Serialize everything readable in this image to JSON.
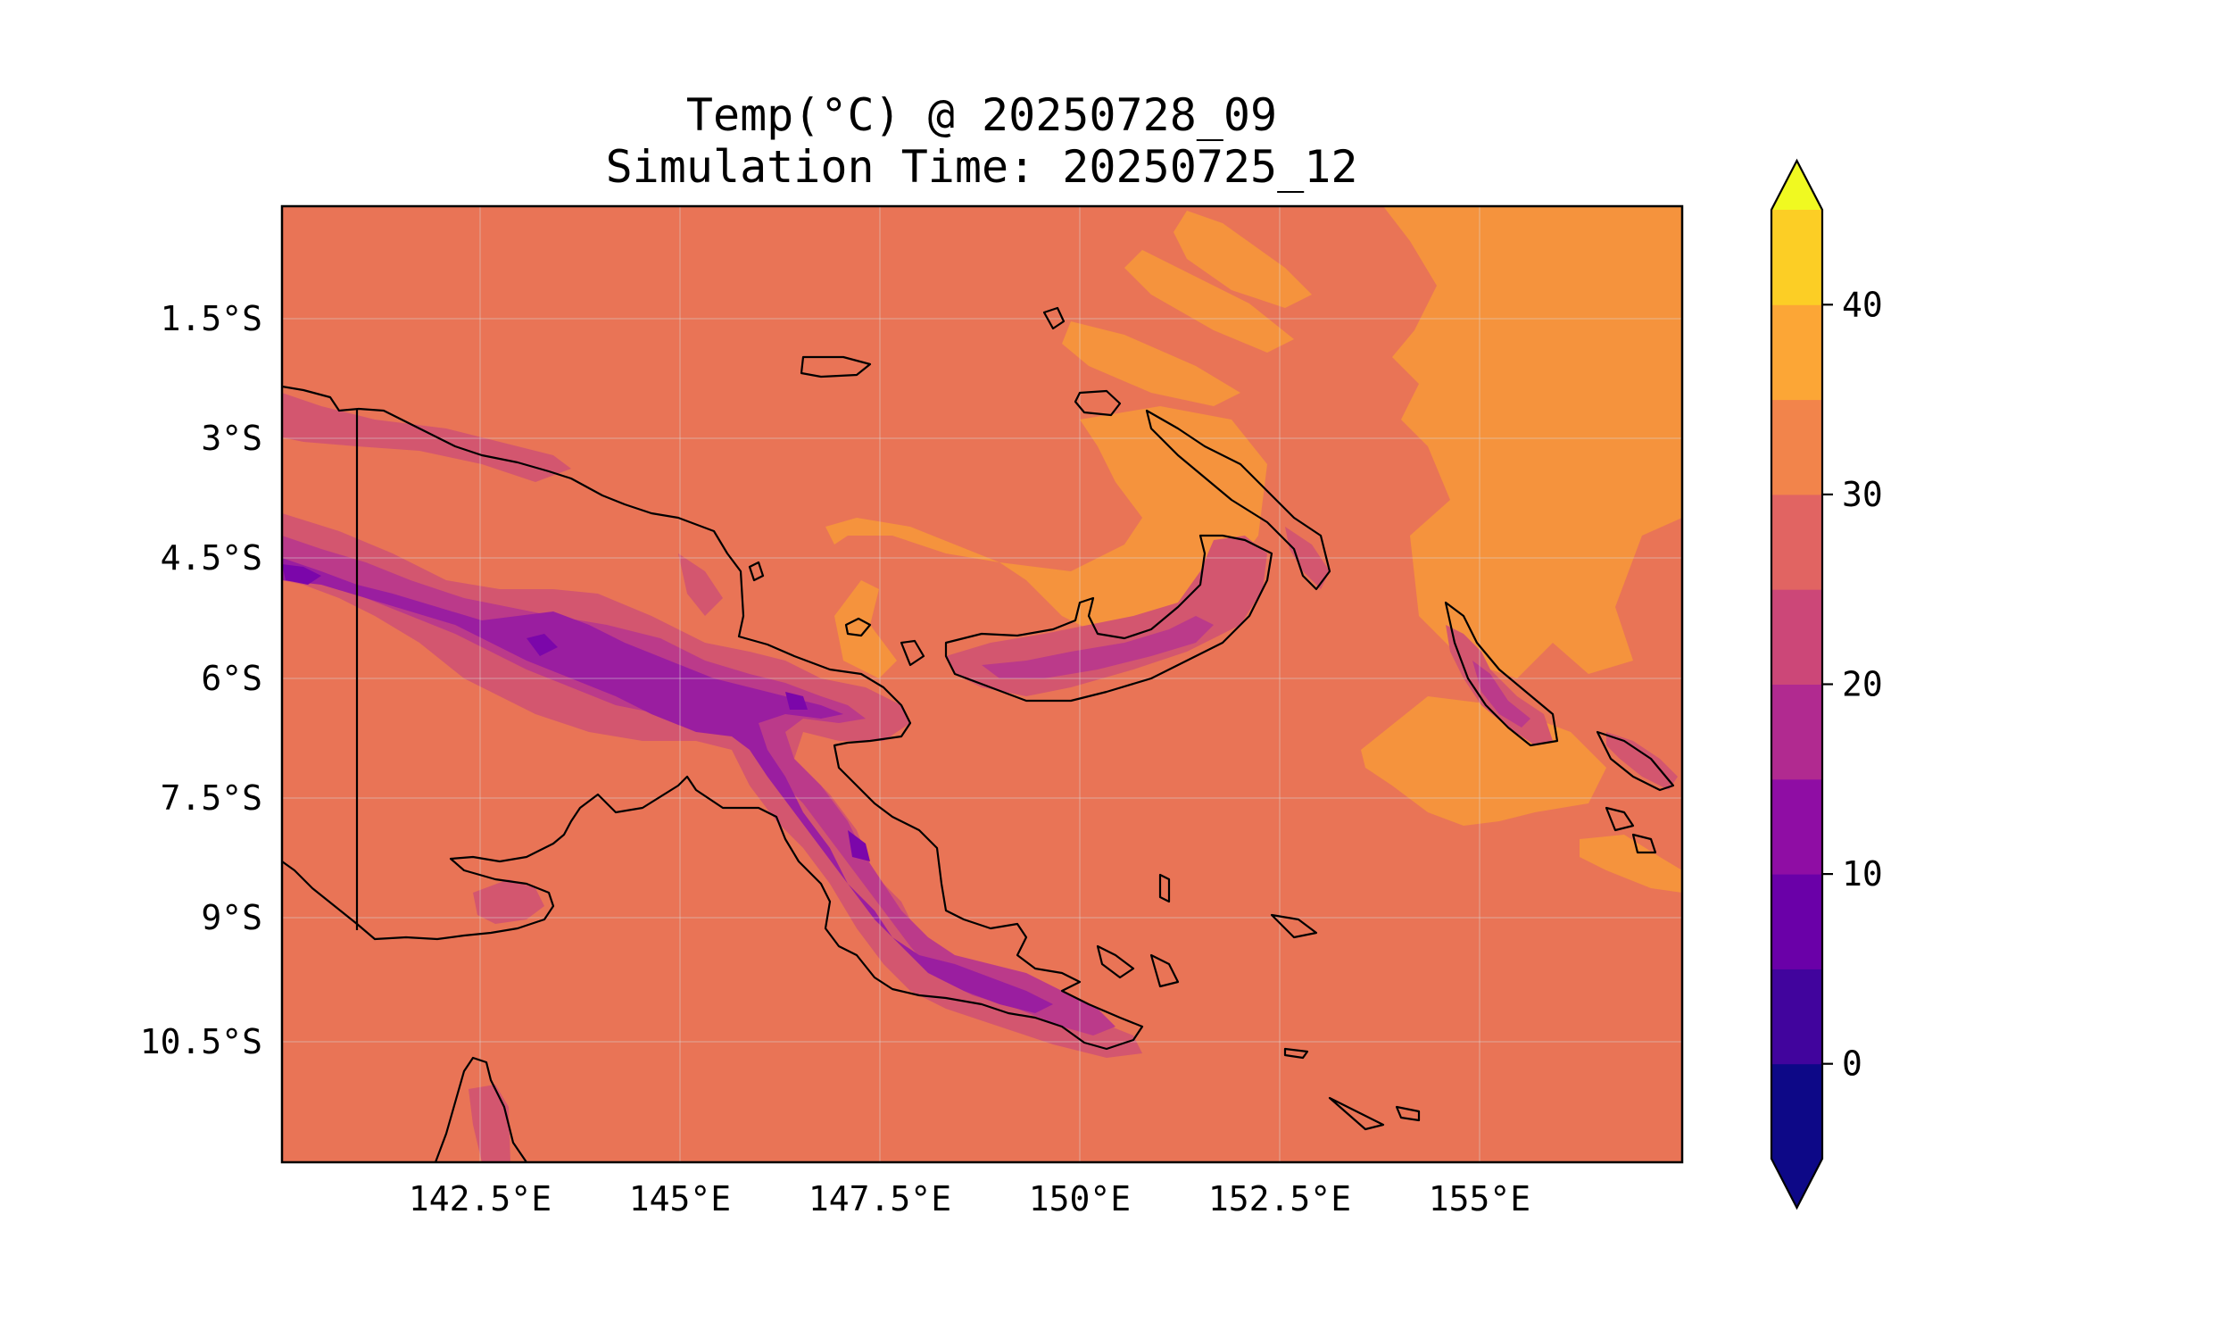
{
  "figure": {
    "title_line1": "Temp(°C) @ 20250728_09",
    "title_line2": "Simulation Time: 20250725_12"
  },
  "map": {
    "lon_range": [
      140.0,
      157.5
    ],
    "lat_range": [
      -12.0,
      0.0
    ],
    "lon_ticks": [
      "142.5°E",
      "145°E",
      "147.5°E",
      "150°E",
      "152.5°E",
      "155°E"
    ],
    "lat_ticks": [
      "1.5°S",
      "3°S",
      "4.5°S",
      "6°S",
      "7.5°S",
      "9°S",
      "10.5°S"
    ],
    "gridlines": true
  },
  "colorbar": {
    "ticks": [
      "0",
      "10",
      "20",
      "30",
      "40"
    ],
    "levels": [
      -5,
      0,
      5,
      10,
      15,
      20,
      25,
      30,
      35,
      40,
      45
    ],
    "colors": [
      "#0d0887",
      "#41049d",
      "#6a00a8",
      "#8f0da4",
      "#b12a90",
      "#cc4778",
      "#e16462",
      "#f2844b",
      "#fca636",
      "#fcce25"
    ],
    "under_color": "#0d0887",
    "over_color": "#f0f921",
    "extend": "both"
  },
  "colors": {
    "background_field": "#e97456",
    "warm_30_35": "#f5933d",
    "cool_20_25": "#d3566f",
    "cool_15_20": "#bb3a8a",
    "cool_10_15": "#9a1ea0",
    "cool_5_10": "#7b06aa",
    "coast": "#000000"
  }
}
